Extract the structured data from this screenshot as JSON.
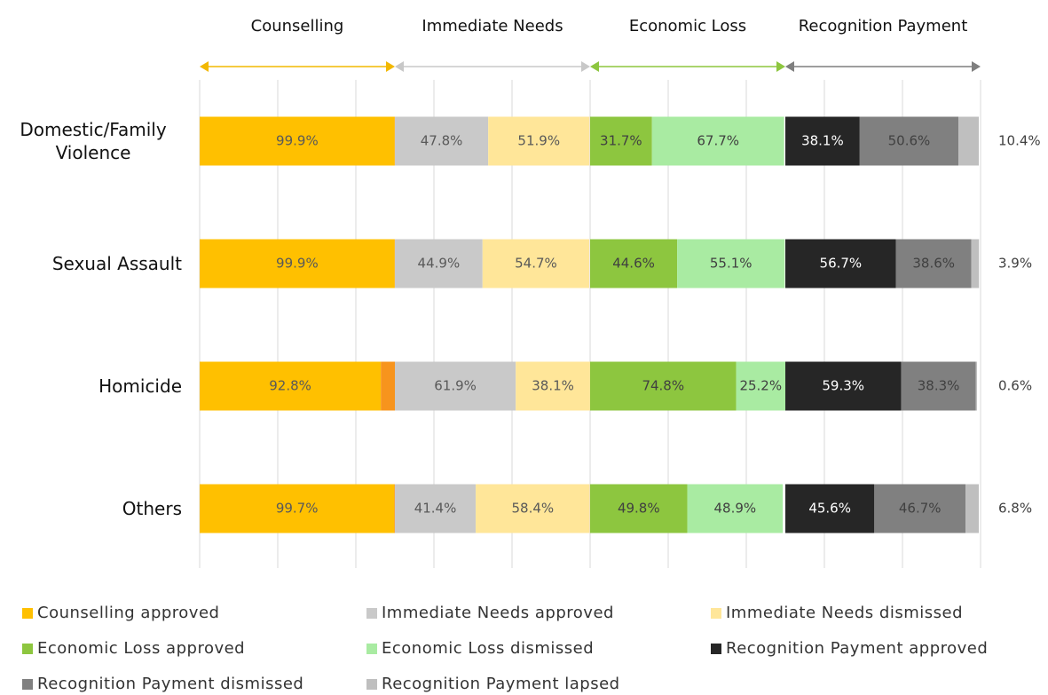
{
  "chart_data": {
    "type": "grouped_stacked_bar",
    "groups": [
      {
        "name": "Counselling",
        "color": "#f2b800"
      },
      {
        "name": "Immediate Needs",
        "color": "#c8c8c8"
      },
      {
        "name": "Economic Loss",
        "color": "#8dc63f"
      },
      {
        "name": "Recognition Payment",
        "color": "#7f7f7f"
      }
    ],
    "categories": [
      "Domestic/Family Violence",
      "Sexual Assault",
      "Homicide",
      "Others"
    ],
    "xlim": [
      0,
      400
    ],
    "xticks": [
      0,
      40,
      80,
      120,
      160,
      200,
      240,
      280,
      320,
      360,
      400
    ],
    "grid": true,
    "tick_labels": false,
    "series": [
      {
        "name": "Counselling approved",
        "group": 0,
        "color": "#ffc000",
        "label_color": "#595959",
        "label_position": "inside",
        "values": [
          99.9,
          99.9,
          92.8,
          99.7
        ],
        "value_labels": [
          "99.9%",
          "99.9%",
          "92.8%",
          "99.7%"
        ]
      },
      {
        "group": 0,
        "color": "#f7941d",
        "label_position": "none",
        "values": [
          0.1,
          0.1,
          7.2,
          0.3
        ]
      },
      {
        "name": "Immediate Needs approved",
        "group": 1,
        "color": "#c9c9c9",
        "label_color": "#595959",
        "label_position": "inside",
        "values": [
          47.8,
          44.9,
          61.9,
          41.4
        ],
        "value_labels": [
          "47.8%",
          "44.9%",
          "61.9%",
          "41.4%"
        ]
      },
      {
        "name": "Immediate Needs dismissed",
        "group": 1,
        "color": "#ffe699",
        "label_color": "#595959",
        "label_position": "inside",
        "values": [
          51.9,
          54.7,
          38.1,
          58.4
        ],
        "value_labels": [
          "51.9%",
          "54.7%",
          "38.1%",
          "58.4%"
        ]
      },
      {
        "name": "Economic Loss approved",
        "group": 2,
        "color": "#8dc63f",
        "label_color": "#404040",
        "label_position": "inside",
        "values": [
          31.7,
          44.6,
          74.8,
          49.8
        ],
        "value_labels": [
          "31.7%",
          "44.6%",
          "74.8%",
          "49.8%"
        ]
      },
      {
        "name": "Economic Loss dismissed",
        "group": 2,
        "color": "#a9eba2",
        "label_color": "#404040",
        "label_position": "inside",
        "values": [
          67.7,
          55.1,
          25.2,
          48.9
        ],
        "value_labels": [
          "67.7%",
          "55.1%",
          "25.2%",
          "48.9%"
        ]
      },
      {
        "name": "Recognition Payment approved",
        "group": 3,
        "color": "#262626",
        "label_color": "#ffffff",
        "label_position": "inside",
        "values": [
          38.1,
          56.7,
          59.3,
          45.6
        ],
        "value_labels": [
          "38.1%",
          "56.7%",
          "59.3%",
          "45.6%"
        ]
      },
      {
        "name": "Recognition Payment dismissed",
        "group": 3,
        "color": "#808080",
        "label_color": "#404040",
        "label_position": "inside",
        "values": [
          50.6,
          38.6,
          38.3,
          46.7
        ],
        "value_labels": [
          "50.6%",
          "38.6%",
          "38.3%",
          "46.7%"
        ]
      },
      {
        "name": "Recognition Payment lapsed",
        "group": 3,
        "color": "#bfbfbf",
        "label_color": "#404040",
        "label_position": "outside",
        "values": [
          10.4,
          3.9,
          0.6,
          6.8
        ],
        "value_labels": [
          "10.4%",
          "3.9%",
          "0.6%",
          "6.8%"
        ]
      }
    ]
  }
}
